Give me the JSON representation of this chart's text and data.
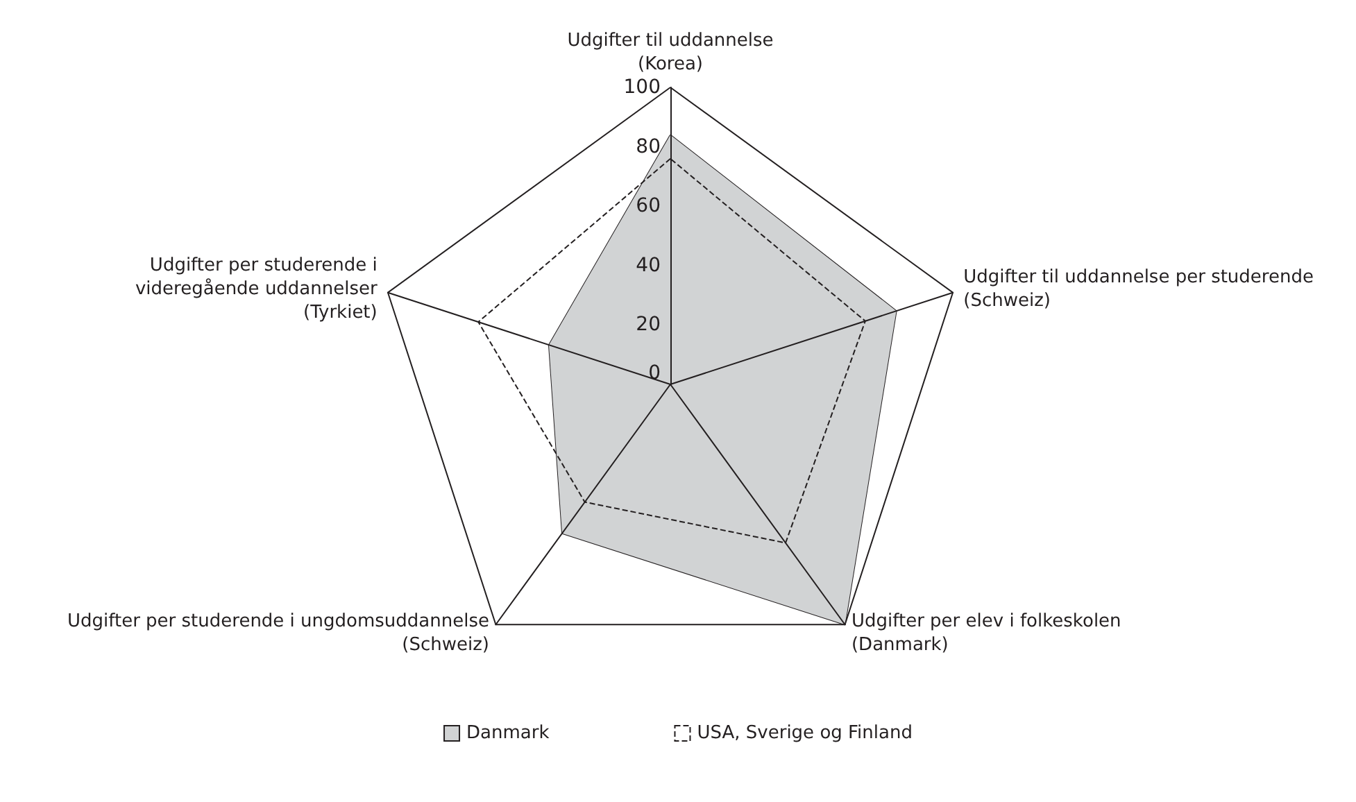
{
  "chart_data": {
    "type": "radar",
    "categories": [
      "Udgifter til uddannelse\n(Korea)",
      "Udgifter til uddannelse per studerende\n(Schweiz)",
      "Udgifter per elev i folkeskolen\n(Danmark)",
      "Udgifter per studerende i ungdomsuddannelse\n(Schweiz)",
      "Udgifter per studerende i\nvideregående uddannelser\n(Tyrkiet)"
    ],
    "series": [
      {
        "name": "Danmark",
        "color": "#d1d3d4",
        "values": [
          84,
          80,
          100,
          62,
          43
        ]
      },
      {
        "name": "USA, Sverige og Finland",
        "color": "#231f20",
        "line_style": "dashed",
        "values": [
          76,
          69,
          66,
          49,
          68
        ]
      }
    ],
    "ylim": [
      0,
      100
    ],
    "yticks": [
      0,
      20,
      40,
      60,
      80,
      100
    ],
    "grid": false,
    "marker": "none",
    "legend": "bottom"
  }
}
